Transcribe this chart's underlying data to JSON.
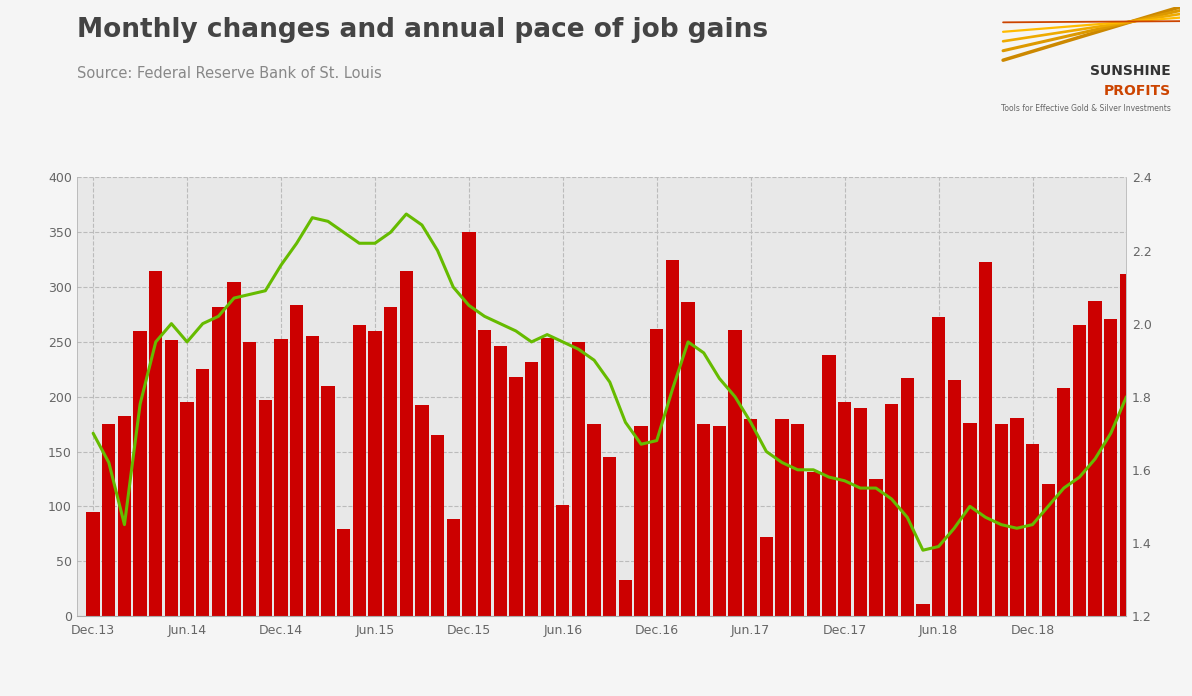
{
  "title": "Monthly changes and annual pace of job gains",
  "source": "Source: Federal Reserve Bank of St. Louis",
  "bar_color": "#cc0000",
  "line_color": "#66bb00",
  "background_color": "#e8e8e8",
  "outer_bg": "#f5f5f5",
  "ylim_left": [
    0,
    400
  ],
  "ylim_right": [
    1.2,
    2.4
  ],
  "yticks_left": [
    0,
    50,
    100,
    150,
    200,
    250,
    300,
    350,
    400
  ],
  "yticks_right": [
    1.2,
    1.4,
    1.6,
    1.8,
    2.0,
    2.2,
    2.4
  ],
  "xtick_positions": [
    0,
    6,
    12,
    18,
    24,
    30,
    36,
    42,
    48,
    54,
    60
  ],
  "xtick_labels": [
    "Dec.13",
    "Jun.14",
    "Dec.14",
    "Jun.15",
    "Dec.15",
    "Jun.16",
    "Dec.16",
    "Jun.17",
    "Dec.17",
    "Jun.18",
    "Dec.18"
  ],
  "bar_values": [
    95,
    175,
    182,
    260,
    315,
    252,
    195,
    225,
    282,
    305,
    250,
    197,
    253,
    284,
    255,
    210,
    79,
    265,
    260,
    282,
    315,
    192,
    165,
    88,
    350,
    261,
    246,
    218,
    232,
    254,
    101,
    250,
    175,
    145,
    33,
    173,
    262,
    325,
    286,
    175,
    173,
    261,
    180,
    72,
    180,
    175,
    131,
    238,
    195,
    190,
    125,
    193,
    217,
    11,
    273,
    215,
    176,
    323,
    175,
    181,
    157,
    120,
    208,
    265,
    287,
    271,
    312
  ],
  "line_values": [
    1.7,
    1.62,
    1.45,
    1.78,
    1.95,
    2.0,
    1.95,
    2.0,
    2.02,
    2.07,
    2.08,
    2.09,
    2.16,
    2.22,
    2.29,
    2.28,
    2.25,
    2.22,
    2.22,
    2.25,
    2.3,
    2.27,
    2.2,
    2.1,
    2.05,
    2.02,
    2.0,
    1.98,
    1.95,
    1.97,
    1.95,
    1.93,
    1.9,
    1.84,
    1.73,
    1.67,
    1.68,
    1.82,
    1.95,
    1.92,
    1.85,
    1.8,
    1.73,
    1.65,
    1.62,
    1.6,
    1.6,
    1.58,
    1.57,
    1.55,
    1.55,
    1.52,
    1.47,
    1.38,
    1.39,
    1.44,
    1.5,
    1.47,
    1.45,
    1.44,
    1.45,
    1.5,
    1.55,
    1.58,
    1.63,
    1.7,
    1.8
  ]
}
